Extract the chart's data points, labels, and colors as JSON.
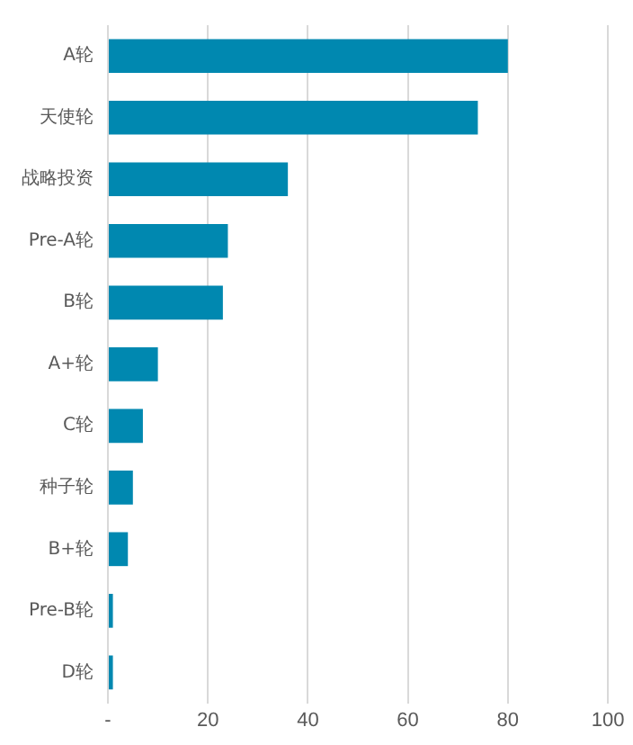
{
  "chart_data": {
    "type": "bar",
    "orientation": "horizontal",
    "categories": [
      "A轮",
      "天使轮",
      "战略投资",
      "Pre-A轮",
      "B轮",
      "A+轮",
      "C轮",
      "种子轮",
      "B+轮",
      "Pre-B轮",
      "D轮"
    ],
    "values": [
      80,
      74,
      36,
      24,
      23,
      10,
      7,
      5,
      4,
      1,
      1
    ],
    "color": "#0088b0",
    "xlim": [
      0,
      100
    ],
    "xticks": [
      {
        "value": 0,
        "label": "-"
      },
      20,
      40,
      60,
      80,
      100
    ],
    "grid": "x",
    "legend": false
  }
}
